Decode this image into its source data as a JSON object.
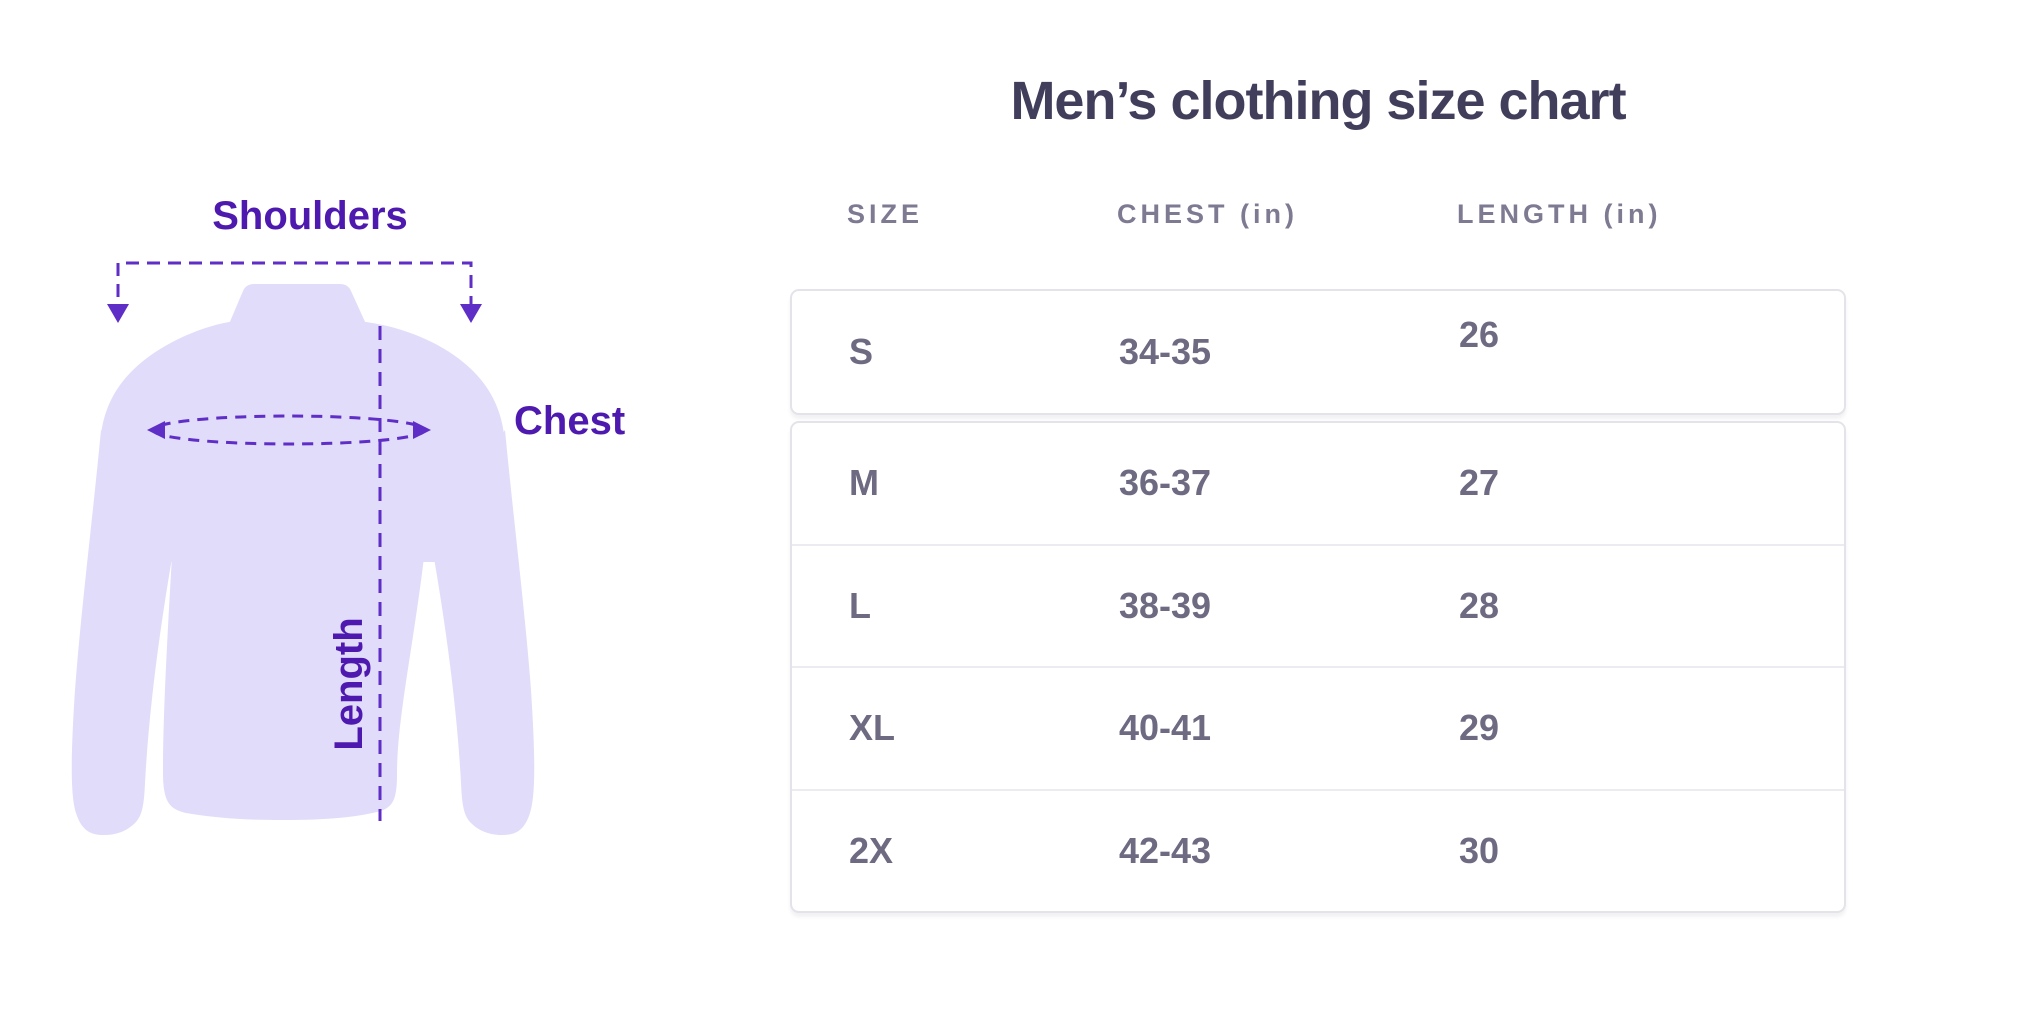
{
  "title": "Men’s clothing size chart",
  "diagram": {
    "labels": {
      "shoulders": "Shoulders",
      "chest": "Chest",
      "length": "Length"
    },
    "shirt_color": "#e1dcf9",
    "annotation_color": "#5e2ec6",
    "label_color": "#4e19ae"
  },
  "table": {
    "headers": [
      "SIZE",
      "CHEST (in)",
      "LENGTH (in)"
    ],
    "rows": [
      {
        "size": "S",
        "chest": "34-35",
        "length": "26"
      },
      {
        "size": "M",
        "chest": "36-37",
        "length": "27"
      },
      {
        "size": "L",
        "chest": "38-39",
        "length": "28"
      },
      {
        "size": "XL",
        "chest": "40-41",
        "length": "29"
      },
      {
        "size": "2X",
        "chest": "42-43",
        "length": "30"
      }
    ]
  },
  "chart_data": {
    "type": "table",
    "title": "Men’s clothing size chart",
    "columns": [
      "SIZE",
      "CHEST (in)",
      "LENGTH (in)"
    ],
    "rows": [
      [
        "S",
        "34-35",
        "26"
      ],
      [
        "M",
        "36-37",
        "27"
      ],
      [
        "L",
        "38-39",
        "28"
      ],
      [
        "XL",
        "40-41",
        "29"
      ],
      [
        "2X",
        "42-43",
        "30"
      ]
    ],
    "units": "inches",
    "diagram_annotations": [
      "Shoulders",
      "Chest",
      "Length"
    ]
  }
}
